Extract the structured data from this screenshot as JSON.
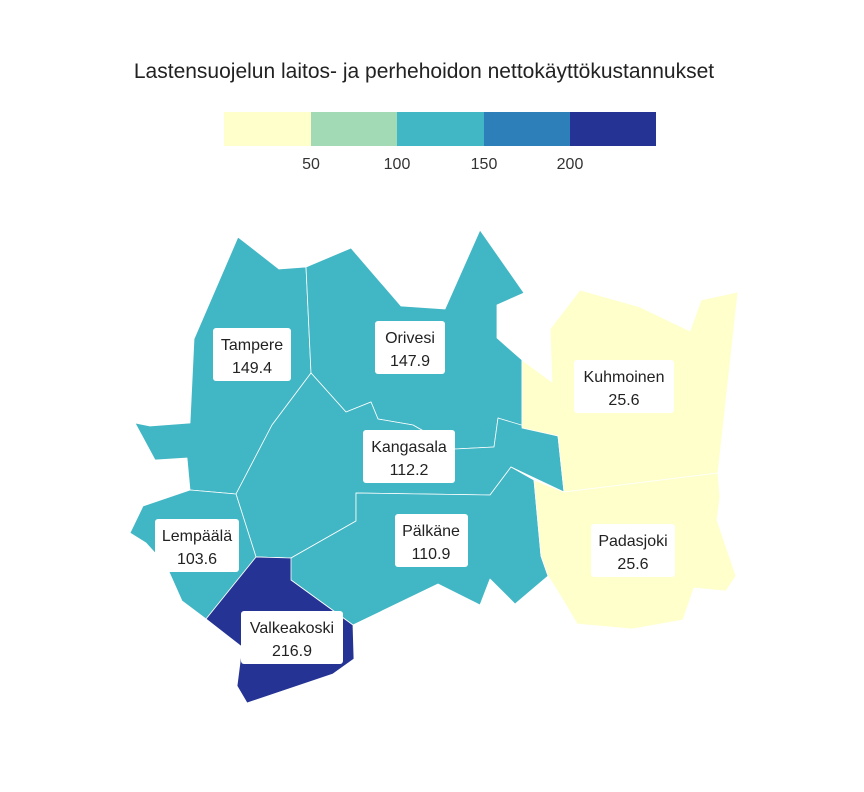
{
  "title": "Lastensuojelun laitos- ja perhehoidon nettokäyttökustannukset",
  "legend": {
    "thresholds": [
      50,
      100,
      150,
      200
    ],
    "tick_labels": [
      "50",
      "100",
      "150",
      "200"
    ],
    "colors": [
      "#ffffcc",
      "#a1dab4",
      "#41b6c4",
      "#2c7fb8",
      "#253494"
    ]
  },
  "regions": [
    {
      "id": "tampere",
      "name": "Tampere",
      "value_label": "149.4",
      "value": 149.4
    },
    {
      "id": "orivesi",
      "name": "Orivesi",
      "value_label": "147.9",
      "value": 147.9
    },
    {
      "id": "kangasala",
      "name": "Kangasala",
      "value_label": "112.2",
      "value": 112.2
    },
    {
      "id": "kuhmoinen",
      "name": "Kuhmoinen",
      "value_label": "25.6",
      "value": 25.6
    },
    {
      "id": "lempaala",
      "name": "Lempäälä",
      "value_label": "103.6",
      "value": 103.6
    },
    {
      "id": "palkane",
      "name": "Pälkäne",
      "value_label": "110.9",
      "value": 110.9
    },
    {
      "id": "padasjoki",
      "name": "Padasjoki",
      "value_label": "25.6",
      "value": 25.6
    },
    {
      "id": "valkeakoski",
      "name": "Valkeakoski",
      "value_label": "216.9",
      "value": 216.9
    }
  ]
}
